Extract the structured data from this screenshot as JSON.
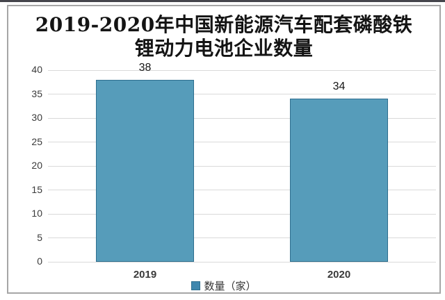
{
  "chart_data": {
    "type": "bar",
    "title": "2019-2020年中国新能源汽车配套磷酸铁锂动力电池企业数量",
    "title_lines": [
      "2019-2020年中国新能源汽车配套磷酸铁",
      "锂动力电池企业数量"
    ],
    "categories": [
      "2019",
      "2020"
    ],
    "series": [
      {
        "name": "数量（家）",
        "values": [
          38,
          34
        ]
      }
    ],
    "legend": [
      "数量（家）"
    ],
    "xlabel": "",
    "ylabel": "",
    "ylim": [
      0,
      40
    ],
    "yticks": [
      0,
      5,
      10,
      15,
      20,
      25,
      30,
      35,
      40
    ],
    "grid": true,
    "legend_position": "bottom",
    "colors": {
      "bar_fill": "#569cba",
      "bar_border": "#2f6f8f",
      "legend_marker": "#3f87ae",
      "gridline": "#d9d9d9",
      "title_text": "#141414",
      "axis_text": "#3a3a3a",
      "frame_border": "#a6a6a6",
      "top_line": "#45454c"
    }
  }
}
